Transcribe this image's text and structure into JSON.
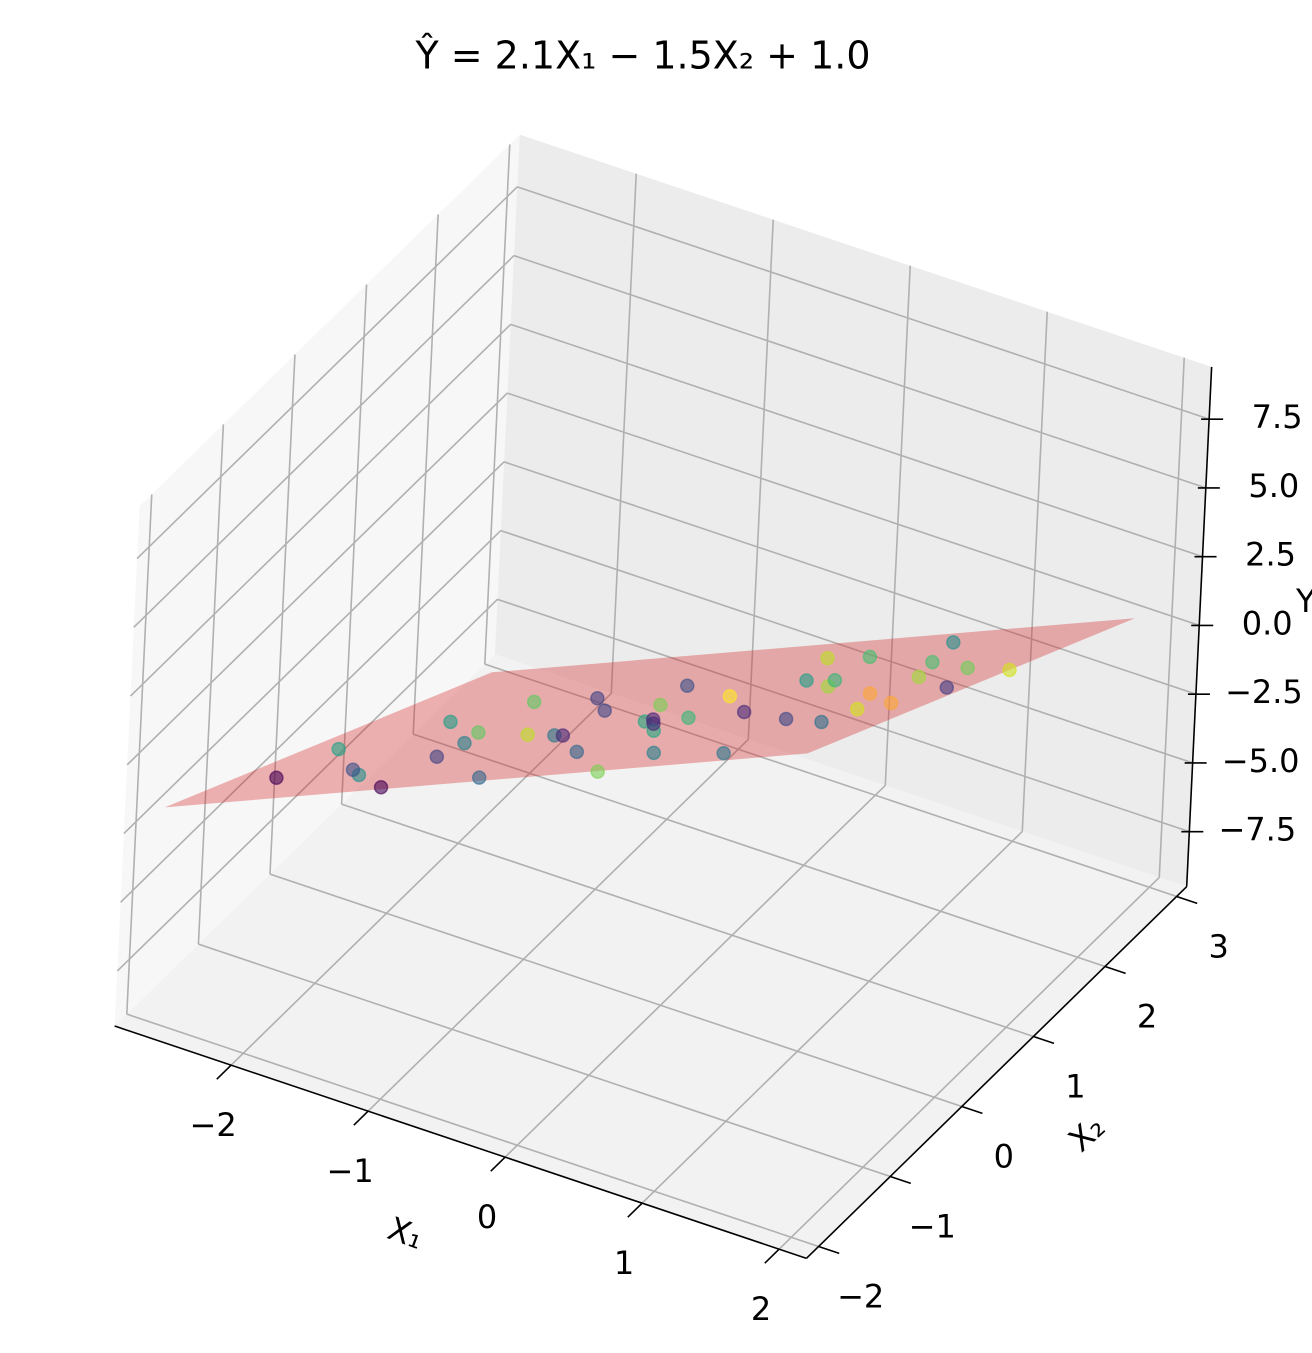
{
  "chart_data": {
    "type": "scatter3d",
    "title": "Ŷ = 2.1X₁ − 1.5X₂ + 1.0",
    "x_label": "X₁",
    "y_label": "X₂",
    "z_label": "Y",
    "xlim": [
      -2.85,
      2.2
    ],
    "ylim": [
      -2.17,
      3.14
    ],
    "zlim": [
      -9.5,
      9.4
    ],
    "xticks": [
      {
        "value": -2,
        "label": "−2"
      },
      {
        "value": -1,
        "label": "−1"
      },
      0,
      1,
      2
    ],
    "yticks": [
      {
        "value": -2,
        "label": "−2"
      },
      {
        "value": -1,
        "label": "−1"
      },
      0,
      1,
      2,
      3
    ],
    "zticks": [
      {
        "value": -7.5,
        "label": "−7.5"
      },
      {
        "value": -5,
        "label": "−5.0"
      },
      {
        "value": -2.5,
        "label": "−2.5"
      },
      {
        "value": 0,
        "label": "0.0"
      },
      2.5,
      {
        "value": 5,
        "label": "5.0"
      },
      7.5
    ],
    "grid": true,
    "surface": {
      "x": [
        -2.6,
        2.0,
        2.0,
        -2.6
      ],
      "y": [
        -2.1,
        -2.1,
        2.6,
        2.6
      ],
      "z": [
        -1.31,
        8.35,
        1.3,
        -8.36
      ],
      "color": "#d62728",
      "alpha": 0.35
    },
    "scatter": {
      "x": [
        -2.2,
        -2.0,
        -1.8,
        -1.5,
        -1.3,
        -1.1,
        -0.9,
        -0.7,
        -0.5,
        -0.3,
        -0.1,
        0.0,
        0.2,
        0.3,
        0.5,
        0.6,
        0.8,
        1.0,
        1.1,
        1.3,
        1.5,
        1.6,
        1.8,
        1.9,
        -2.4,
        -1.6,
        -0.8,
        0.1,
        0.9,
        -1.2,
        -0.4,
        0.4,
        1.2,
        -0.2,
        0.7,
        -1.0,
        1.4,
        0.2,
        -0.6,
        1.7,
        -1.9,
        0.0,
        2.0,
        -1.4,
        0.6
      ],
      "y": [
        -1.3,
        -0.5,
        -1.0,
        0.2,
        -0.8,
        0.5,
        -0.3,
        1.0,
        -0.6,
        0.4,
        -1.2,
        0.8,
        -0.2,
        1.3,
        0.0,
        -1.5,
        0.6,
        -0.4,
        1.5,
        0.2,
        -0.9,
        1.0,
        0.3,
        -1.2,
        0.0,
        1.2,
        1.8,
        2.0,
        2.2,
        -1.8,
        -2.0,
        -1.9,
        -1.7,
        0.1,
        0.9,
        0.9,
        0.7,
        -0.7,
        0.2,
        -0.3,
        0.6,
        -0.3,
        0.8,
        -0.2,
        1.6
      ],
      "z": [
        -1.6,
        -3.2,
        -1.4,
        -2.6,
        -0.6,
        -2.8,
        -0.4,
        -2.9,
        1.0,
        -0.1,
        2.6,
        -0.3,
        1.8,
        -0.5,
        2.0,
        4.5,
        1.9,
        3.6,
        1.0,
        3.5,
        5.6,
        2.9,
        4.3,
        7.5,
        -4.2,
        -4.2,
        -3.8,
        -1.8,
        -0.4,
        1.0,
        3.2,
        4.5,
        6.0,
        0.3,
        1.2,
        -2.3,
        3.0,
        2.6,
        -0.3,
        5.1,
        -3.9,
        1.5,
        4.0,
        -1.8,
        0.1
      ],
      "colors": [
        "#440154",
        "#21918c",
        "#3b528b",
        "#5ec962",
        "#414487",
        "#2a788e",
        "#bddf26",
        "#22a884",
        "#482878",
        "#7ad151",
        "#31688e",
        "#fde725",
        "#35b779",
        "#1f9e89",
        "#472c7a",
        "#26828e",
        "#a0da39",
        "#3e4989",
        "#44bf70",
        "#fca636",
        "#2c728e",
        "#6ece58",
        "#433e85",
        "#d2e21b",
        "#20a486",
        "#5ec962",
        "#3b528b",
        "#bddf26",
        "#21918c",
        "#440154",
        "#31688e",
        "#7ad151",
        "#2a788e",
        "#482878",
        "#35b779",
        "#414487",
        "#a0da39",
        "#22a884",
        "#3e4989",
        "#fca636",
        "#1f9e89",
        "#472c7a",
        "#d2e21b",
        "#26828e",
        "#44bf70"
      ],
      "alpha": 0.6
    }
  }
}
